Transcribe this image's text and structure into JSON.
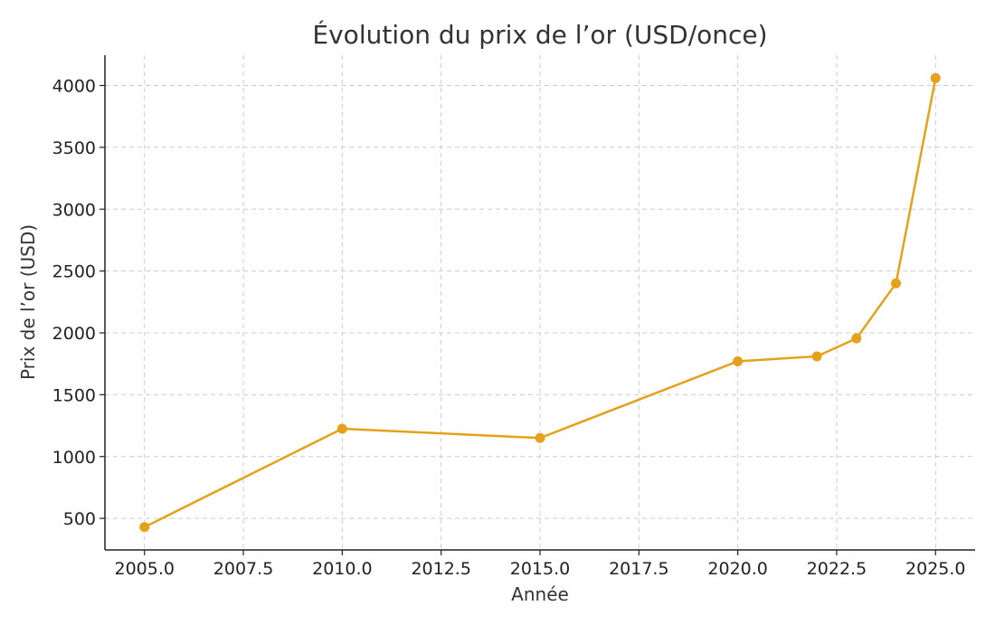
{
  "chart_data": {
    "type": "line",
    "title": "Évolution du prix de l’or (USD/once)",
    "xlabel": "Année",
    "ylabel": "Prix de l’or (USD)",
    "x": [
      2005,
      2010,
      2015,
      2020,
      2022,
      2023,
      2024,
      2025
    ],
    "series": [
      {
        "values": [
          430,
          1225,
          1150,
          1770,
          1810,
          1955,
          2400,
          4060
        ]
      }
    ],
    "xlim": [
      2004.0,
      2026.0
    ],
    "ylim": [
      245,
      4245
    ],
    "xticks": [
      2005.0,
      2007.5,
      2010.0,
      2012.5,
      2015.0,
      2017.5,
      2020.0,
      2022.5,
      2025.0
    ],
    "xtick_labels": [
      "2005.0",
      "2007.5",
      "2010.0",
      "2012.5",
      "2015.0",
      "2017.5",
      "2020.0",
      "2022.5",
      "2025.0"
    ],
    "yticks": [
      500,
      1000,
      1500,
      2000,
      2500,
      3000,
      3500,
      4000
    ],
    "ytick_labels": [
      "500",
      "1000",
      "1500",
      "2000",
      "2500",
      "3000",
      "3500",
      "4000"
    ],
    "grid": true,
    "colors": {
      "line": "#e5a11a",
      "marker": "#e5a11a"
    }
  }
}
